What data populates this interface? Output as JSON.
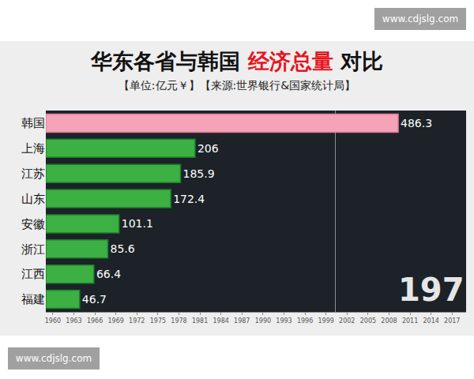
{
  "chart_data": {
    "type": "bar",
    "title": "华东各省与韩国 经济总量 对比",
    "subtitle": "【单位:亿元￥】【来源:世界银行&国家统计局】",
    "orientation": "horizontal",
    "categories": [
      "韩国",
      "上海",
      "江苏",
      "山东",
      "安徽",
      "浙江",
      "江西",
      "福建"
    ],
    "values": [
      486.3,
      206,
      185.9,
      172.4,
      101.1,
      85.6,
      66.4,
      46.7
    ],
    "colors": [
      "#f4a3b8",
      "#3cb043",
      "#3cb043",
      "#3cb043",
      "#3cb043",
      "#3cb043",
      "#3cb043",
      "#3cb043"
    ],
    "xlim": [
      0,
      580
    ],
    "xticks": [
      0,
      400
    ],
    "grid": true,
    "tick_labels": "y",
    "data_labels": true
  },
  "timeline": {
    "xlim": [
      1959,
      2019
    ],
    "xticks": [
      1960,
      1963,
      1966,
      1969,
      1972,
      1975,
      1978,
      1981,
      1984,
      1987,
      1990,
      1993,
      1996,
      1999,
      2002,
      2005,
      2008,
      2011,
      2014,
      2017
    ],
    "current": "197"
  },
  "watermarks": [
    "www.cdjslg.com",
    "www.cdjslg.com"
  ]
}
